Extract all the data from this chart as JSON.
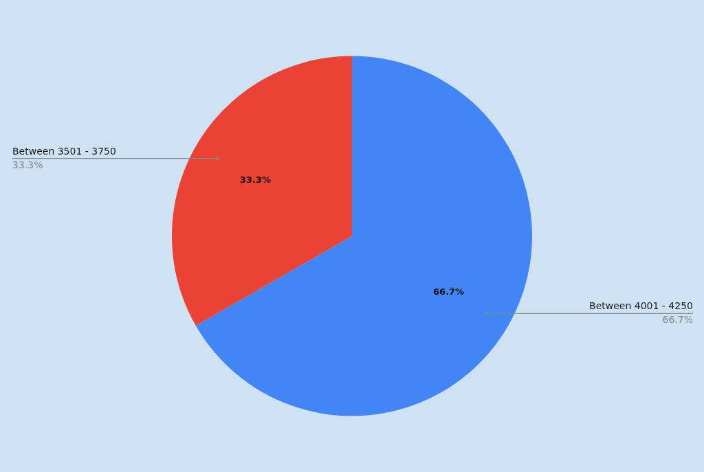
{
  "chart_data": {
    "type": "pie",
    "categories": [
      "Between 4001 - 4250",
      "Between 3501 - 3750"
    ],
    "values": [
      66.7,
      33.3
    ],
    "colors": [
      "#4285f4",
      "#ea4335"
    ],
    "value_labels": [
      "66.7%",
      "33.3%"
    ]
  }
}
